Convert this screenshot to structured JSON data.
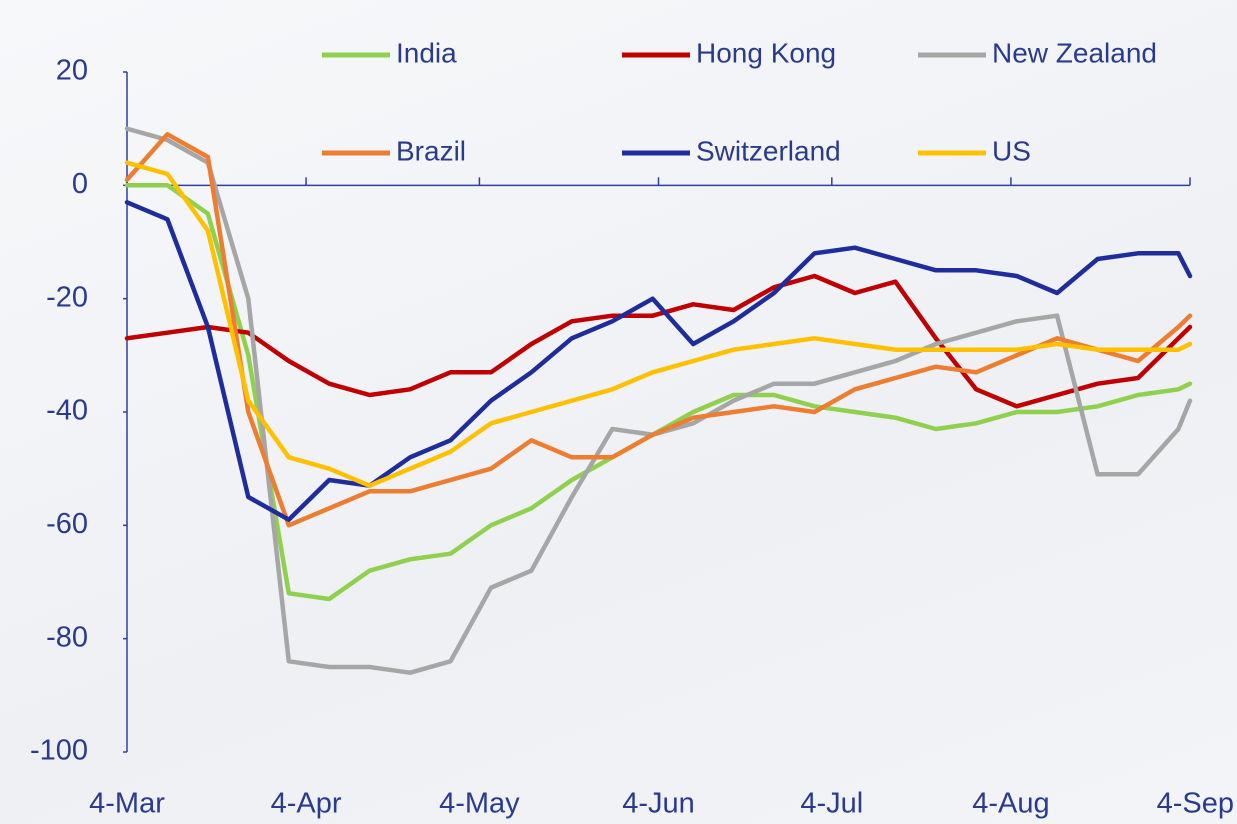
{
  "chart_data": {
    "type": "line",
    "x": [
      "4-Mar",
      "11-Mar",
      "18-Mar",
      "25-Mar",
      "1-Apr",
      "8-Apr",
      "15-Apr",
      "22-Apr",
      "29-Apr",
      "6-May",
      "13-May",
      "20-May",
      "27-May",
      "3-Jun",
      "10-Jun",
      "17-Jun",
      "24-Jun",
      "1-Jul",
      "8-Jul",
      "15-Jul",
      "22-Jul",
      "29-Jul",
      "5-Aug",
      "12-Aug",
      "19-Aug",
      "26-Aug",
      "2-Sep",
      "4-Sep"
    ],
    "series": [
      {
        "name": "India",
        "color": "#8fd14f",
        "values": [
          0,
          0,
          -5,
          -30,
          -72,
          -73,
          -68,
          -66,
          -65,
          -60,
          -57,
          -52,
          -48,
          -44,
          -40,
          -37,
          -37,
          -39,
          -40,
          -41,
          -43,
          -42,
          -40,
          -40,
          -39,
          -37,
          -36,
          -35
        ]
      },
      {
        "name": "Hong Kong",
        "color": "#c00000",
        "values": [
          -27,
          -26,
          -25,
          -26,
          -31,
          -35,
          -37,
          -36,
          -33,
          -33,
          -28,
          -24,
          -23,
          -23,
          -21,
          -22,
          -18,
          -16,
          -19,
          -17,
          -27,
          -36,
          -39,
          -37,
          -35,
          -34,
          -27,
          -25
        ]
      },
      {
        "name": "New Zealand",
        "color": "#a6a6a6",
        "values": [
          10,
          8,
          4,
          -20,
          -84,
          -85,
          -85,
          -86,
          -84,
          -71,
          -68,
          -55,
          -43,
          -44,
          -42,
          -38,
          -35,
          -35,
          -33,
          -31,
          -28,
          -26,
          -24,
          -23,
          -51,
          -51,
          -43,
          -38
        ]
      },
      {
        "name": "Brazil",
        "color": "#ed7d31",
        "values": [
          1,
          9,
          5,
          -40,
          -60,
          -57,
          -54,
          -54,
          -52,
          -50,
          -45,
          -48,
          -48,
          -44,
          -41,
          -40,
          -39,
          -40,
          -36,
          -34,
          -32,
          -33,
          -30,
          -27,
          -29,
          -31,
          -25,
          -23
        ]
      },
      {
        "name": "Switzerland",
        "color": "#1f2d9c",
        "values": [
          -3,
          -6,
          -25,
          -55,
          -59,
          -52,
          -53,
          -48,
          -45,
          -38,
          -33,
          -27,
          -24,
          -20,
          -28,
          -24,
          -19,
          -12,
          -11,
          -13,
          -15,
          -15,
          -16,
          -19,
          -13,
          -12,
          -12,
          -16
        ]
      },
      {
        "name": "US",
        "color": "#ffc000",
        "values": [
          4,
          2,
          -8,
          -38,
          -48,
          -50,
          -53,
          -50,
          -47,
          -42,
          -40,
          -38,
          -36,
          -33,
          -31,
          -29,
          -28,
          -27,
          -28,
          -29,
          -29,
          -29,
          -29,
          -28,
          -29,
          -29,
          -29,
          -28
        ]
      }
    ],
    "xticks": [
      "4-Mar",
      "4-Apr",
      "4-May",
      "4-Jun",
      "4-Jul",
      "4-Aug",
      "4-Sep"
    ],
    "ylim": [
      -100,
      20
    ],
    "yticks": [
      -100,
      -80,
      -60,
      -40,
      -20,
      0,
      20
    ],
    "axis_color": "#2e3fa0"
  }
}
